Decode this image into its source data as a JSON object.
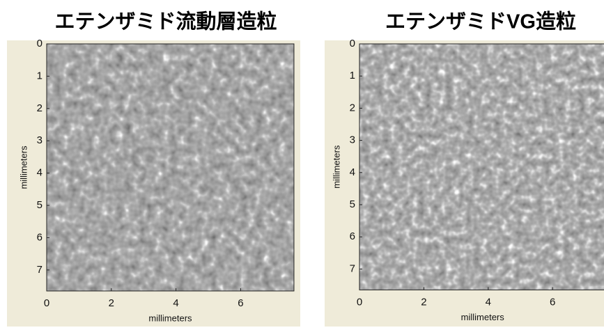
{
  "chart_data": [
    {
      "type": "image",
      "title": "エテンザミド流動層造粒",
      "xlabel": "millimeters",
      "ylabel": "millimeters",
      "xlim": [
        0,
        7.65
      ],
      "ylim": [
        0,
        7.65
      ],
      "y_reversed": true,
      "xticks": [
        0,
        2,
        4,
        6
      ],
      "yticks": [
        0,
        1,
        2,
        3,
        4,
        5,
        6,
        7
      ]
    },
    {
      "type": "image",
      "title": "エテンザミドVG造粒",
      "xlabel": "millimeters",
      "ylabel": "millimeters",
      "xlim": [
        0,
        7.65
      ],
      "ylim": [
        0,
        7.65
      ],
      "y_reversed": true,
      "xticks": [
        0,
        2,
        4,
        6
      ],
      "yticks": [
        0,
        1,
        2,
        3,
        4,
        5,
        6,
        7
      ]
    }
  ]
}
